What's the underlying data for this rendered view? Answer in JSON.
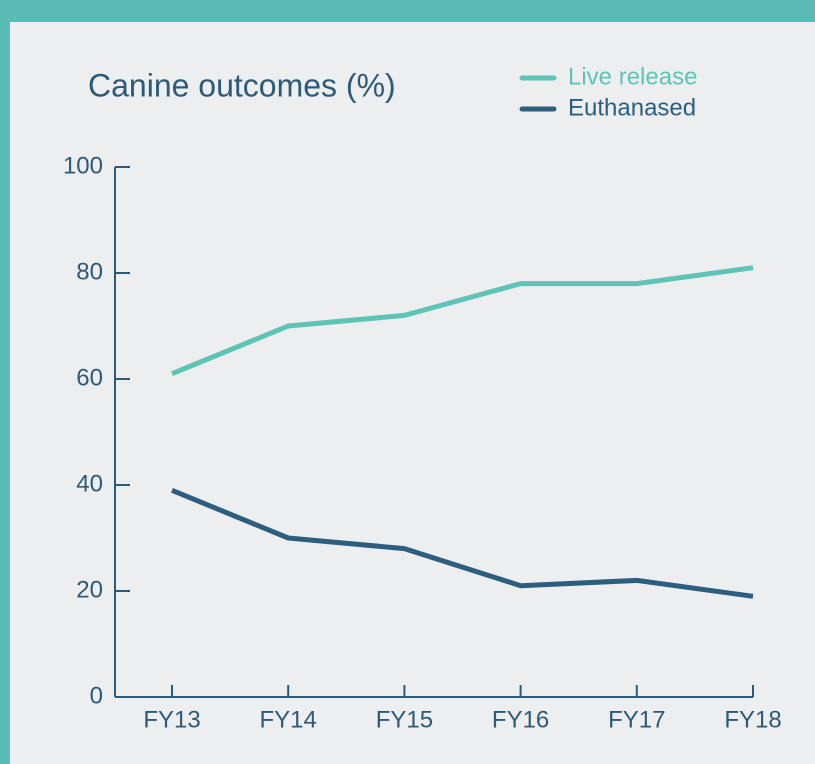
{
  "chart_data": {
    "type": "line",
    "title": "Canine outcomes (%)",
    "categories": [
      "FY13",
      "FY14",
      "FY15",
      "FY16",
      "FY17",
      "FY18"
    ],
    "series": [
      {
        "name": "Live release",
        "color": "#5ec4b6",
        "values": [
          61,
          70,
          72,
          78,
          78,
          81
        ]
      },
      {
        "name": "Euthanased",
        "color": "#2c5f7f",
        "values": [
          39,
          30,
          28,
          21,
          22,
          19
        ]
      }
    ],
    "ylim": [
      0,
      100
    ],
    "yticks": [
      0,
      20,
      40,
      60,
      80,
      100
    ],
    "grid": false,
    "legend": "top-right"
  }
}
